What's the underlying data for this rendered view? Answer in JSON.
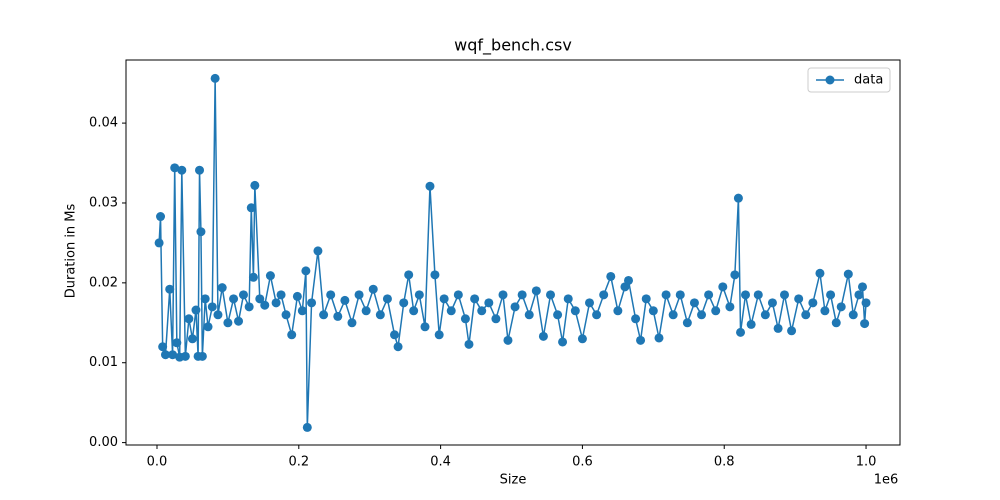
{
  "chart_data": {
    "type": "line",
    "title": "wqf_bench.csv",
    "x_label": "Size",
    "y_label": "Duration in Ms",
    "x_offset_label": "1e6",
    "x": [
      3000,
      5000,
      8000,
      12000,
      18000,
      22000,
      25000,
      28000,
      32000,
      35000,
      40000,
      45000,
      50000,
      55000,
      58000,
      60000,
      62000,
      64000,
      68000,
      72000,
      78000,
      82000,
      86000,
      92000,
      100000,
      108000,
      115000,
      122000,
      130000,
      133000,
      136000,
      138000,
      145000,
      152000,
      160000,
      168000,
      175000,
      182000,
      190000,
      198000,
      205000,
      210000,
      212000,
      218000,
      227000,
      235000,
      245000,
      255000,
      265000,
      275000,
      285000,
      295000,
      305000,
      315000,
      325000,
      335000,
      340000,
      348000,
      355000,
      362000,
      370000,
      378000,
      385000,
      392000,
      398000,
      405000,
      415000,
      425000,
      435000,
      440000,
      448000,
      458000,
      468000,
      478000,
      488000,
      495000,
      505000,
      515000,
      525000,
      535000,
      545000,
      555000,
      565000,
      572000,
      580000,
      590000,
      600000,
      610000,
      620000,
      630000,
      640000,
      650000,
      660000,
      665000,
      675000,
      682000,
      690000,
      700000,
      708000,
      718000,
      728000,
      738000,
      748000,
      758000,
      768000,
      778000,
      788000,
      798000,
      808000,
      815000,
      820000,
      823000,
      830000,
      838000,
      848000,
      858000,
      868000,
      876000,
      885000,
      895000,
      905000,
      915000,
      925000,
      935000,
      942000,
      950000,
      958000,
      965000,
      975000,
      982000,
      990000,
      995000,
      998000,
      1000000
    ],
    "series": [
      {
        "name": "data",
        "color": "#1f77b4",
        "values": [
          0.025,
          0.0283,
          0.012,
          0.011,
          0.0192,
          0.011,
          0.0344,
          0.0125,
          0.0107,
          0.0341,
          0.0108,
          0.0155,
          0.013,
          0.0166,
          0.0108,
          0.0341,
          0.0264,
          0.0108,
          0.018,
          0.0145,
          0.017,
          0.0456,
          0.016,
          0.0194,
          0.015,
          0.018,
          0.0152,
          0.0185,
          0.017,
          0.0294,
          0.0207,
          0.0322,
          0.018,
          0.0172,
          0.0209,
          0.0175,
          0.0185,
          0.016,
          0.0135,
          0.0183,
          0.0165,
          0.0215,
          0.0019,
          0.0175,
          0.024,
          0.016,
          0.0185,
          0.0158,
          0.0178,
          0.015,
          0.0185,
          0.0165,
          0.0192,
          0.016,
          0.018,
          0.0135,
          0.012,
          0.0175,
          0.021,
          0.0165,
          0.0185,
          0.0145,
          0.0321,
          0.021,
          0.0135,
          0.018,
          0.0165,
          0.0185,
          0.0155,
          0.0123,
          0.018,
          0.0165,
          0.0175,
          0.0155,
          0.0185,
          0.0128,
          0.017,
          0.0185,
          0.016,
          0.019,
          0.0133,
          0.0185,
          0.016,
          0.0126,
          0.018,
          0.0165,
          0.013,
          0.0175,
          0.016,
          0.0185,
          0.0208,
          0.0165,
          0.0195,
          0.0203,
          0.0155,
          0.0128,
          0.018,
          0.0165,
          0.0131,
          0.0185,
          0.016,
          0.0185,
          0.015,
          0.0175,
          0.016,
          0.0185,
          0.0165,
          0.0195,
          0.017,
          0.021,
          0.0306,
          0.0138,
          0.0185,
          0.0148,
          0.0185,
          0.016,
          0.0175,
          0.0143,
          0.0185,
          0.014,
          0.018,
          0.016,
          0.0175,
          0.0212,
          0.0165,
          0.0185,
          0.015,
          0.017,
          0.0211,
          0.016,
          0.0185,
          0.0195,
          0.0149,
          0.0175
        ]
      }
    ],
    "xlim": [
      -43700,
      1047900
    ],
    "xticks": [
      {
        "value": 0,
        "label": "0.0"
      },
      {
        "value": 200000,
        "label": "0.2"
      },
      {
        "value": 400000,
        "label": "0.4"
      },
      {
        "value": 600000,
        "label": "0.6"
      },
      {
        "value": 800000,
        "label": "0.8"
      },
      {
        "value": 1000000,
        "label": "1.0"
      }
    ],
    "ylim": [
      -0.0003,
      0.0479
    ],
    "yticks": [
      {
        "value": 0,
        "label": "0.00"
      },
      0.01,
      0.02,
      0.03,
      0.04
    ],
    "legend": "upper right",
    "markers": true,
    "grid": false
  }
}
